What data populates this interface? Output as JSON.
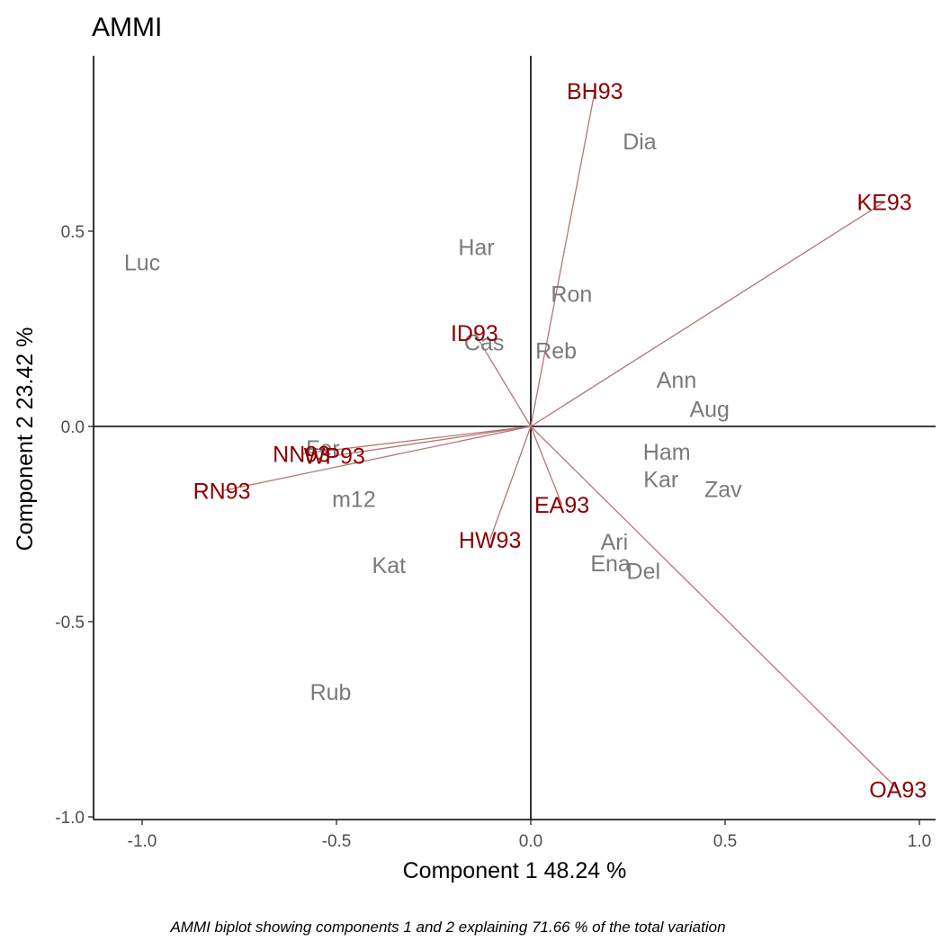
{
  "chart_data": {
    "type": "scatter",
    "title": "AMMI",
    "xlabel": "Component 1 48.24 %",
    "ylabel": "Component 2 23.42 %",
    "caption": "AMMI biplot showing components 1 and 2 explaining  71.66 % of the total variation",
    "xlim": [
      -1.1,
      1.05
    ],
    "ylim": [
      -1.0,
      0.95
    ],
    "x_ticks": [
      -1.0,
      -0.5,
      0.0,
      0.5,
      1.0
    ],
    "x_tick_labels": [
      "-1.0",
      "-0.5",
      "0.0",
      "0.5",
      "1.0"
    ],
    "y_ticks": [
      -1.0,
      -0.5,
      0.0,
      0.5
    ],
    "y_tick_labels": [
      "-1.0",
      "-0.5",
      "0.0",
      "0.5"
    ],
    "grid": false,
    "reference_lines": {
      "x": 0,
      "y": 0
    },
    "genotype_color": "#7a7a7a",
    "environment_color": "#8b0000",
    "arrow_color": "#b87575",
    "genotypes": [
      {
        "name": "Luc",
        "x": -1.0,
        "y": 0.42
      },
      {
        "name": "Har",
        "x": -0.14,
        "y": 0.46
      },
      {
        "name": "Dia",
        "x": 0.28,
        "y": 0.73
      },
      {
        "name": "Ron",
        "x": 0.105,
        "y": 0.34
      },
      {
        "name": "Cas",
        "x": -0.12,
        "y": 0.215
      },
      {
        "name": "Reb",
        "x": 0.065,
        "y": 0.195
      },
      {
        "name": "Ann",
        "x": 0.375,
        "y": 0.12
      },
      {
        "name": "Aug",
        "x": 0.46,
        "y": 0.045
      },
      {
        "name": "Ham",
        "x": 0.35,
        "y": -0.065
      },
      {
        "name": "Kar",
        "x": 0.335,
        "y": -0.135
      },
      {
        "name": "Zav",
        "x": 0.495,
        "y": -0.16
      },
      {
        "name": "Fer",
        "x": -0.535,
        "y": -0.055
      },
      {
        "name": "m12",
        "x": -0.455,
        "y": -0.185
      },
      {
        "name": "Kat",
        "x": -0.365,
        "y": -0.355
      },
      {
        "name": "Ari",
        "x": 0.215,
        "y": -0.295
      },
      {
        "name": "Ena",
        "x": 0.205,
        "y": -0.35
      },
      {
        "name": "Del",
        "x": 0.29,
        "y": -0.37
      },
      {
        "name": "Rub",
        "x": -0.515,
        "y": -0.68
      }
    ],
    "environments": [
      {
        "name": "BH93",
        "x": 0.165,
        "y": 0.86
      },
      {
        "name": "KE93",
        "x": 0.91,
        "y": 0.575
      },
      {
        "name": "ID93",
        "x": -0.145,
        "y": 0.24
      },
      {
        "name": "NN93",
        "x": -0.59,
        "y": -0.07
      },
      {
        "name": "WP93",
        "x": -0.505,
        "y": -0.075
      },
      {
        "name": "RN93",
        "x": -0.795,
        "y": -0.165
      },
      {
        "name": "HW93",
        "x": -0.105,
        "y": -0.29
      },
      {
        "name": "EA93",
        "x": 0.08,
        "y": -0.2
      },
      {
        "name": "OA93",
        "x": 0.945,
        "y": -0.93
      }
    ]
  }
}
